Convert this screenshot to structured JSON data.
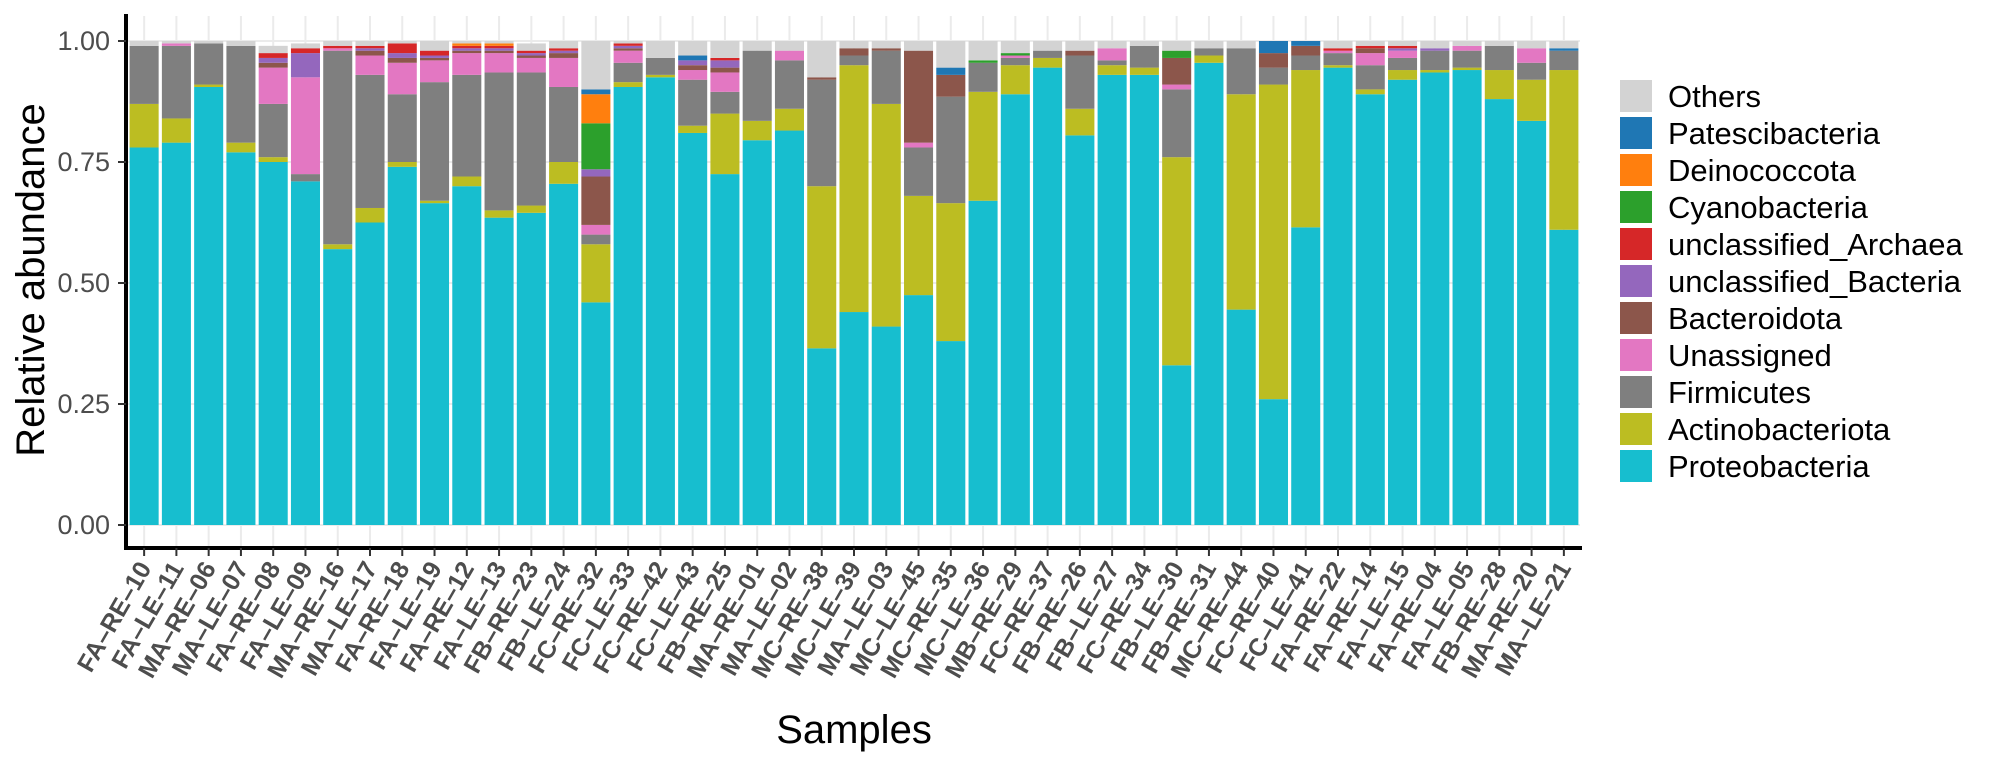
{
  "chart_data": {
    "type": "bar",
    "stacked": true,
    "title": "",
    "xlabel": "Samples",
    "ylabel": "Relative abundance",
    "ylim": [
      0,
      1
    ],
    "yticks": [
      "0.00",
      "0.25",
      "0.50",
      "0.75",
      "1.00"
    ],
    "grid": true,
    "legend_position": "right",
    "categories": [
      "FA-RE-10",
      "FA-LE-11",
      "MA-RE-06",
      "MA-LE-07",
      "FA-RE-08",
      "FA-LE-09",
      "MA-RE-16",
      "MA-LE-17",
      "FA-RE-18",
      "FA-LE-19",
      "FA-RE-12",
      "FA-LE-13",
      "FB-RE-23",
      "FB-LE-24",
      "FC-RE-32",
      "FC-LE-33",
      "FC-RE-42",
      "FC-LE-43",
      "FB-RE-25",
      "MA-RE-01",
      "MA-LE-02",
      "MC-RE-38",
      "MC-LE-39",
      "MA-LE-03",
      "MC-LE-45",
      "MC-RE-35",
      "MC-LE-36",
      "MB-RE-29",
      "FC-RE-37",
      "FB-RE-26",
      "FB-LE-27",
      "FC-RE-34",
      "FB-LE-30",
      "FB-RE-31",
      "MC-RE-44",
      "FC-RE-40",
      "FC-LE-41",
      "FA-RE-22",
      "FA-RE-14",
      "FA-LE-15",
      "FA-RE-04",
      "FA-LE-05",
      "FB-RE-28",
      "MA-RE-20",
      "MA-LE-21"
    ],
    "series": [
      {
        "name": "Proteobacteria",
        "color": "#17BECF",
        "values": [
          0.78,
          0.79,
          0.905,
          0.77,
          0.75,
          0.71,
          0.57,
          0.625,
          0.74,
          0.665,
          0.7,
          0.635,
          0.645,
          0.705,
          0.46,
          0.905,
          0.925,
          0.81,
          0.725,
          0.795,
          0.815,
          0.365,
          0.44,
          0.41,
          0.475,
          0.38,
          0.67,
          0.89,
          0.945,
          0.805,
          0.93,
          0.93,
          0.33,
          0.955,
          0.445,
          0.26,
          0.615,
          0.945,
          0.89,
          0.92,
          0.935,
          0.94,
          0.88,
          0.835,
          0.61
        ]
      },
      {
        "name": "Actinobacteriota",
        "color": "#BCBD22",
        "values": [
          0.09,
          0.05,
          0.005,
          0.02,
          0.01,
          0.0,
          0.01,
          0.03,
          0.01,
          0.005,
          0.02,
          0.015,
          0.015,
          0.045,
          0.12,
          0.01,
          0.005,
          0.015,
          0.125,
          0.04,
          0.045,
          0.335,
          0.51,
          0.46,
          0.205,
          0.285,
          0.225,
          0.06,
          0.02,
          0.055,
          0.02,
          0.015,
          0.43,
          0.015,
          0.445,
          0.65,
          0.325,
          0.005,
          0.01,
          0.02,
          0.005,
          0.005,
          0.06,
          0.085,
          0.33
        ]
      },
      {
        "name": "Firmicutes",
        "color": "#7F7F7F",
        "values": [
          0.12,
          0.15,
          0.085,
          0.2,
          0.11,
          0.015,
          0.4,
          0.275,
          0.14,
          0.245,
          0.21,
          0.285,
          0.275,
          0.155,
          0.02,
          0.04,
          0.035,
          0.095,
          0.045,
          0.145,
          0.1,
          0.22,
          0.02,
          0.11,
          0.1,
          0.22,
          0.06,
          0.015,
          0.015,
          0.11,
          0.01,
          0.045,
          0.14,
          0.015,
          0.095,
          0.035,
          0.03,
          0.025,
          0.05,
          0.025,
          0.04,
          0.035,
          0.05,
          0.035,
          0.04
        ]
      },
      {
        "name": "Unassigned",
        "color": "#E377C2",
        "values": [
          0.0,
          0.005,
          0.0,
          0.0,
          0.075,
          0.2,
          0.005,
          0.04,
          0.065,
          0.045,
          0.045,
          0.04,
          0.03,
          0.06,
          0.02,
          0.025,
          0.0,
          0.02,
          0.04,
          0.0,
          0.02,
          0.0,
          0.0,
          0.0,
          0.01,
          0.0,
          0.0,
          0.005,
          0.0,
          0.0,
          0.025,
          0.0,
          0.01,
          0.0,
          0.0,
          0.0,
          0.0,
          0.005,
          0.025,
          0.015,
          0.0,
          0.01,
          0.0,
          0.03,
          0.0
        ]
      },
      {
        "name": "Bacteroidota",
        "color": "#8C564B",
        "values": [
          0.0,
          0.0,
          0.0,
          0.0,
          0.01,
          0.0,
          0.0,
          0.01,
          0.01,
          0.005,
          0.005,
          0.005,
          0.005,
          0.01,
          0.1,
          0.005,
          0.0,
          0.01,
          0.01,
          0.0,
          0.0,
          0.005,
          0.015,
          0.005,
          0.19,
          0.045,
          0.0,
          0.0,
          0.0,
          0.01,
          0.0,
          0.0,
          0.055,
          0.0,
          0.0,
          0.03,
          0.02,
          0.0,
          0.01,
          0.0,
          0.0,
          0.0,
          0.0,
          0.0,
          0.0
        ]
      },
      {
        "name": "unclassified_Bacteria",
        "color": "#9467BD",
        "values": [
          0.0,
          0.0,
          0.0,
          0.0,
          0.01,
          0.05,
          0.0,
          0.005,
          0.01,
          0.005,
          0.005,
          0.005,
          0.005,
          0.005,
          0.015,
          0.005,
          0.0,
          0.01,
          0.015,
          0.0,
          0.0,
          0.0,
          0.0,
          0.0,
          0.0,
          0.0,
          0.0,
          0.0,
          0.0,
          0.0,
          0.0,
          0.0,
          0.0,
          0.0,
          0.0,
          0.0,
          0.0,
          0.0,
          0.0,
          0.005,
          0.005,
          0.0,
          0.0,
          0.0,
          0.0
        ]
      },
      {
        "name": "unclassified_Archaea",
        "color": "#D62728",
        "values": [
          0.0,
          0.0,
          0.0,
          0.0,
          0.01,
          0.01,
          0.005,
          0.005,
          0.02,
          0.01,
          0.005,
          0.005,
          0.005,
          0.005,
          0.0,
          0.005,
          0.0,
          0.0,
          0.005,
          0.0,
          0.0,
          0.0,
          0.0,
          0.0,
          0.0,
          0.0,
          0.0,
          0.0,
          0.0,
          0.0,
          0.0,
          0.0,
          0.0,
          0.0,
          0.0,
          0.0,
          0.0,
          0.005,
          0.005,
          0.005,
          0.0,
          0.0,
          0.0,
          0.0,
          0.0
        ]
      },
      {
        "name": "Cyanobacteria",
        "color": "#2CA02C",
        "values": [
          0.0,
          0.0,
          0.0,
          0.0,
          0.0,
          0.0,
          0.0,
          0.0,
          0.0,
          0.0,
          0.0,
          0.0,
          0.0,
          0.0,
          0.095,
          0.0,
          0.0,
          0.0,
          0.0,
          0.0,
          0.0,
          0.0,
          0.0,
          0.0,
          0.0,
          0.0,
          0.005,
          0.005,
          0.0,
          0.0,
          0.0,
          0.0,
          0.015,
          0.0,
          0.0,
          0.0,
          0.0,
          0.0,
          0.0,
          0.0,
          0.0,
          0.0,
          0.0,
          0.0,
          0.0
        ]
      },
      {
        "name": "Deinococcota",
        "color": "#FF7F0E",
        "values": [
          0.0,
          0.0,
          0.0,
          0.0,
          0.0,
          0.0,
          0.0,
          0.0,
          0.0,
          0.0,
          0.005,
          0.005,
          0.0,
          0.0,
          0.06,
          0.0,
          0.0,
          0.0,
          0.0,
          0.0,
          0.0,
          0.0,
          0.0,
          0.0,
          0.0,
          0.0,
          0.0,
          0.0,
          0.0,
          0.0,
          0.0,
          0.0,
          0.0,
          0.0,
          0.0,
          0.0,
          0.0,
          0.0,
          0.0,
          0.0,
          0.0,
          0.0,
          0.0,
          0.0,
          0.0
        ]
      },
      {
        "name": "Patescibacteria",
        "color": "#1F77B4",
        "values": [
          0.0,
          0.0,
          0.0,
          0.0,
          0.0,
          0.0,
          0.0,
          0.0,
          0.0,
          0.0,
          0.0,
          0.0,
          0.0,
          0.0,
          0.01,
          0.0,
          0.0,
          0.01,
          0.0,
          0.0,
          0.0,
          0.0,
          0.0,
          0.0,
          0.0,
          0.015,
          0.0,
          0.0,
          0.0,
          0.0,
          0.0,
          0.0,
          0.0,
          0.0,
          0.0,
          0.025,
          0.01,
          0.0,
          0.0,
          0.0,
          0.0,
          0.0,
          0.0,
          0.0,
          0.005
        ]
      },
      {
        "name": "Others",
        "color": "#D3D3D3",
        "values": [
          0.01,
          0.005,
          0.005,
          0.01,
          0.015,
          0.01,
          0.01,
          0.01,
          0.005,
          0.02,
          0.005,
          0.005,
          0.015,
          0.015,
          0.1,
          0.005,
          0.035,
          0.03,
          0.035,
          0.02,
          0.02,
          0.075,
          0.015,
          0.015,
          0.02,
          0.055,
          0.04,
          0.025,
          0.02,
          0.02,
          0.015,
          0.01,
          0.02,
          0.015,
          0.015,
          0.0,
          0.0,
          0.015,
          0.01,
          0.01,
          0.015,
          0.01,
          0.01,
          0.015,
          0.015
        ]
      }
    ]
  }
}
